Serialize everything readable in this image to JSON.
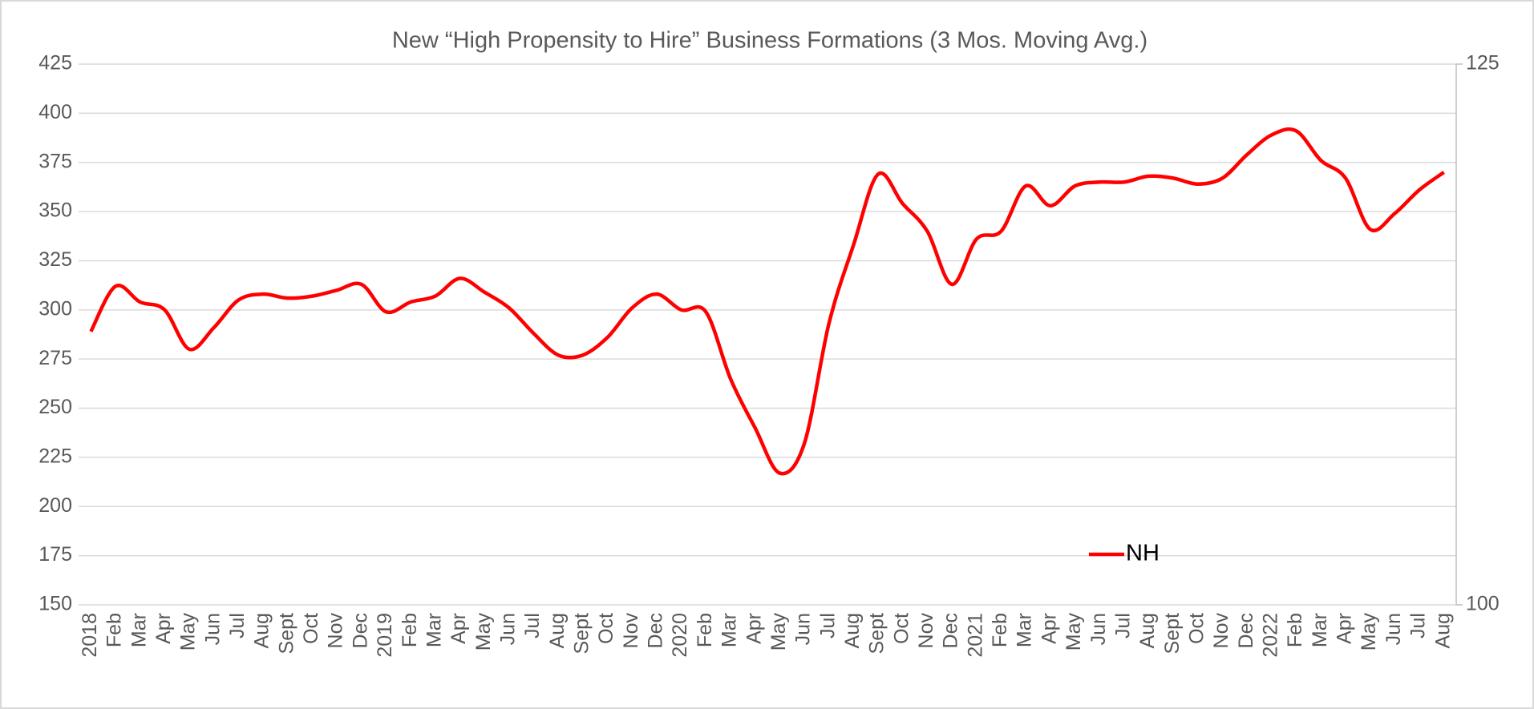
{
  "chart_data": {
    "type": "line",
    "title": "New “High Propensity to Hire” Business Formations (3 Mos. Moving Avg.)",
    "categories": [
      "2018",
      "Feb",
      "Mar",
      "Apr",
      "May",
      "Jun",
      "Jul",
      "Aug",
      "Sept",
      "Oct",
      "Nov",
      "Dec",
      "2019",
      "Feb",
      "Mar",
      "Apr",
      "May",
      "Jun",
      "Jul",
      "Aug",
      "Sept",
      "Oct",
      "Nov",
      "Dec",
      "2020",
      "Feb",
      "Mar",
      "Apr",
      "May",
      "Jun",
      "Jul",
      "Aug",
      "Sept",
      "Oct",
      "Nov",
      "Dec",
      "2021",
      "Feb",
      "Mar",
      "Apr",
      "May",
      "Jun",
      "Jul",
      "Aug",
      "Sept",
      "Oct",
      "Nov",
      "Dec",
      "2022",
      "Feb",
      "Mar",
      "Apr",
      "May",
      "Jun",
      "Jul",
      "Aug"
    ],
    "series": [
      {
        "name": "NH",
        "color": "#ff0000",
        "values": [
          289,
          312,
          304,
          300,
          280,
          291,
          305,
          308,
          306,
          307,
          310,
          313,
          299,
          304,
          307,
          316,
          309,
          301,
          288,
          277,
          277,
          286,
          301,
          308,
          300,
          299,
          265,
          240,
          217,
          232,
          293,
          333,
          369,
          354,
          340,
          313,
          336,
          340,
          363,
          353,
          363,
          365,
          365,
          368,
          367,
          364,
          367,
          379,
          389,
          391,
          376,
          367,
          341,
          349,
          361,
          370
        ]
      }
    ],
    "ylim": [
      150,
      425
    ],
    "yticks": [
      150,
      175,
      200,
      225,
      250,
      275,
      300,
      325,
      350,
      375,
      400,
      425
    ],
    "y2lim": [
      100,
      125
    ],
    "y2ticks": [
      100,
      125
    ],
    "grid": true,
    "legend": "lower-right",
    "smooth": true
  }
}
